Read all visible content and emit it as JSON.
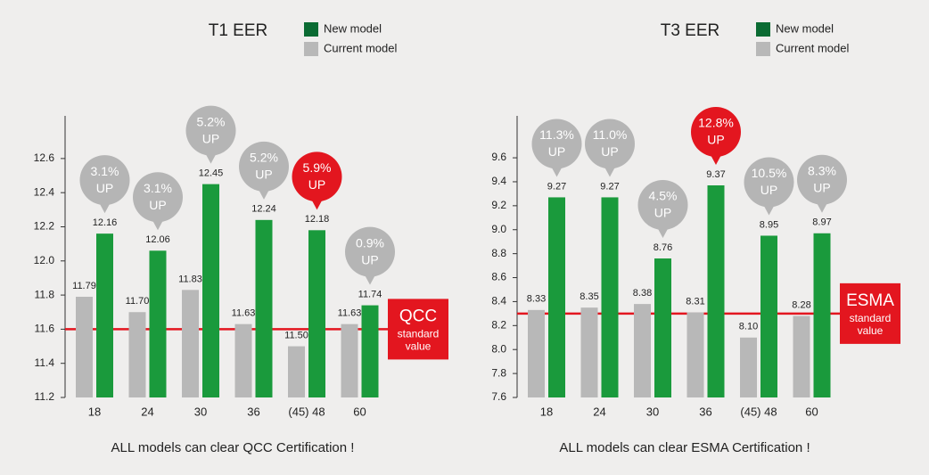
{
  "chart_data": [
    {
      "type": "bar",
      "title": "T1 EER",
      "categories": [
        "18",
        "24",
        "30",
        "36",
        "(45) 48",
        "60"
      ],
      "series": [
        {
          "name": "New model",
          "color": "#1a9a3c",
          "values": [
            12.16,
            12.06,
            12.45,
            12.24,
            12.18,
            11.74
          ],
          "value_labels": [
            "12.16",
            "12.06",
            "12.45",
            "12.24",
            "12.18",
            "11.74"
          ]
        },
        {
          "name": "Current model",
          "color": "#b8b8b8",
          "values": [
            11.79,
            11.7,
            11.83,
            11.63,
            11.5,
            11.63
          ],
          "value_labels": [
            "11.79",
            "11.70",
            "11.83",
            "11.63",
            "11.50",
            "11.63"
          ]
        }
      ],
      "improvements": [
        3.1,
        3.1,
        5.2,
        5.2,
        5.9,
        0.9
      ],
      "improvement_labels": [
        "3.1%",
        "3.1%",
        "5.2%",
        "5.2%",
        "5.9%",
        "0.9%"
      ],
      "improvement_text": "UP",
      "highlight_index": 4,
      "bubble_color": "#b5b5b5",
      "highlight_color": "#e3161f",
      "legend_colors": [
        "#0b6b33",
        "#b8b8b8"
      ],
      "standard_line": {
        "value": 11.6,
        "name": "QCC",
        "text": [
          "standard",
          "value"
        ],
        "color": "#e3161f"
      },
      "ylim": [
        11.2,
        12.85
      ],
      "yticks": [
        11.2,
        11.4,
        11.6,
        11.8,
        {
          "value": 12,
          "label": "12.0"
        },
        12.2,
        12.4,
        12.6
      ],
      "note": "ALL models can clear QCC Certification !"
    },
    {
      "type": "bar",
      "title": "T3 EER",
      "categories": [
        "18",
        "24",
        "30",
        "36",
        "(45) 48",
        "60"
      ],
      "series": [
        {
          "name": "New model",
          "color": "#1a9a3c",
          "values": [
            9.27,
            9.27,
            8.76,
            9.37,
            8.95,
            8.97
          ],
          "value_labels": [
            "9.27",
            "9.27",
            "8.76",
            "9.37",
            "8.95",
            "8.97"
          ]
        },
        {
          "name": "Current model",
          "color": "#b8b8b8",
          "values": [
            8.33,
            8.35,
            8.38,
            8.31,
            8.1,
            8.28
          ],
          "value_labels": [
            "8.33",
            "8.35",
            "8.38",
            "8.31",
            "8.10",
            "8.28"
          ]
        }
      ],
      "improvements": [
        11.3,
        11.0,
        4.5,
        12.8,
        10.5,
        8.3
      ],
      "improvement_labels": [
        "11.3%",
        "11.0%",
        "4.5%",
        "12.8%",
        "10.5%",
        "8.3%"
      ],
      "improvement_text": "UP",
      "highlight_index": 3,
      "bubble_color": "#b5b5b5",
      "highlight_color": "#e3161f",
      "legend_colors": [
        "#0b6b33",
        "#b8b8b8"
      ],
      "standard_line": {
        "value": 8.3,
        "name": "ESMA",
        "text": [
          "standard",
          "value"
        ],
        "color": "#e3161f"
      },
      "ylim": [
        7.6,
        9.95
      ],
      "yticks": [
        7.6,
        7.8,
        {
          "value": 8,
          "label": "8.0"
        },
        8.2,
        8.4,
        8.6,
        8.8,
        {
          "value": 9,
          "label": "9.0"
        },
        9.2,
        9.4,
        9.6
      ],
      "note": "ALL models can clear ESMA Certification !"
    }
  ]
}
